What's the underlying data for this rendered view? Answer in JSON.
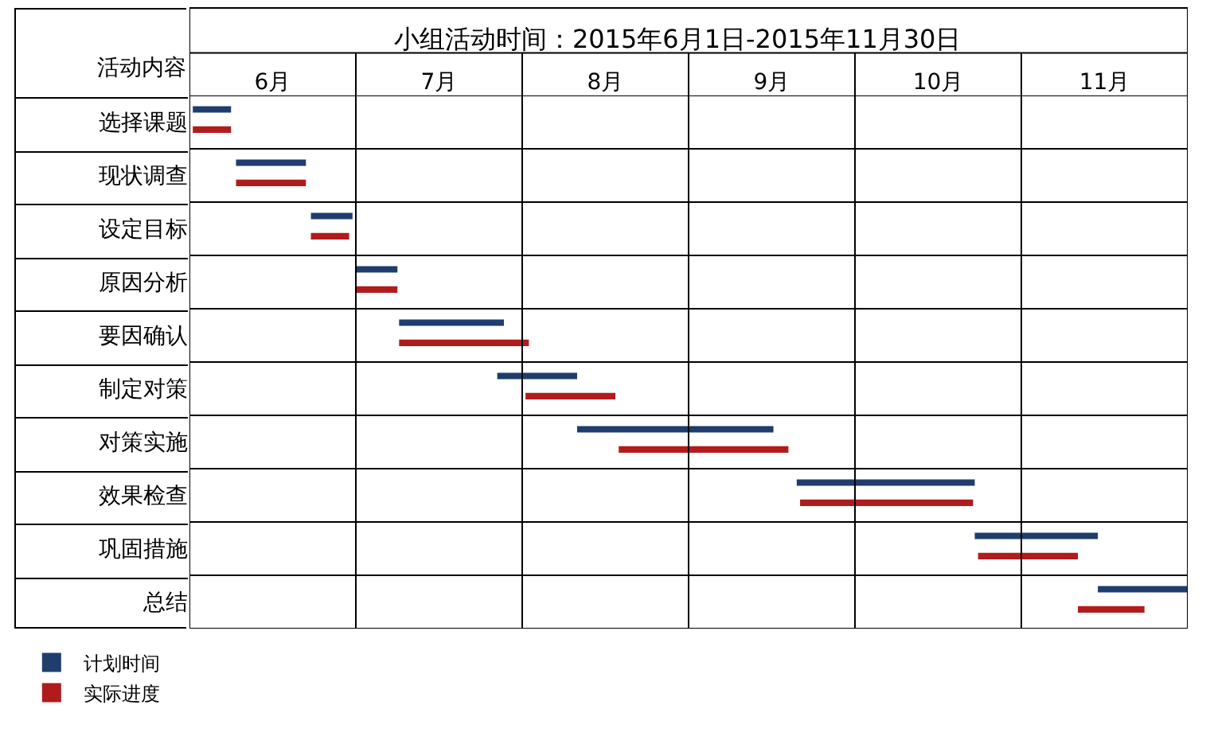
{
  "chart_data": {
    "type": "bar",
    "orientation": "horizontal",
    "title": "小组活动时间：2015年6月1日-2015年11月30日",
    "ylabel": "活动内容",
    "categories": [
      "选择课题",
      "现状调查",
      "设定目标",
      "原因分析",
      "要因确认",
      "制定对策",
      "对策实施",
      "效果检查",
      "巩固措施",
      "总结"
    ],
    "series": [
      {
        "name": "计划时间",
        "color": "#1f3d6d",
        "base": [
          6.02,
          6.28,
          6.73,
          7.0,
          7.26,
          7.85,
          8.33,
          9.65,
          10.72,
          11.46
        ],
        "values": [
          0.23,
          0.42,
          0.25,
          0.25,
          0.63,
          0.48,
          1.18,
          1.07,
          0.74,
          0.54
        ]
      },
      {
        "name": "实际进度",
        "color": "#b01c1c",
        "base": [
          6.02,
          6.28,
          6.73,
          7.0,
          7.26,
          8.02,
          8.58,
          9.67,
          10.74,
          11.34
        ],
        "values": [
          0.23,
          0.42,
          0.23,
          0.25,
          0.78,
          0.54,
          1.02,
          1.04,
          0.6,
          0.4
        ]
      }
    ],
    "xlim": [
      6,
      12
    ],
    "xticks": [
      {
        "value": 6,
        "label": null
      },
      {
        "value": 6.5,
        "label": "6月"
      },
      {
        "value": 7,
        "label": null
      },
      {
        "value": 7.5,
        "label": "7月"
      },
      {
        "value": 8,
        "label": null
      },
      {
        "value": 8.5,
        "label": "8月"
      },
      {
        "value": 9,
        "label": null
      },
      {
        "value": 9.5,
        "label": "9月"
      },
      {
        "value": 10,
        "label": null
      },
      {
        "value": 10.5,
        "label": "10月"
      },
      {
        "value": 11,
        "label": null
      },
      {
        "value": 11.5,
        "label": "11月"
      },
      {
        "value": 12,
        "label": null
      }
    ],
    "grid": "x",
    "legend": "bottom left"
  }
}
